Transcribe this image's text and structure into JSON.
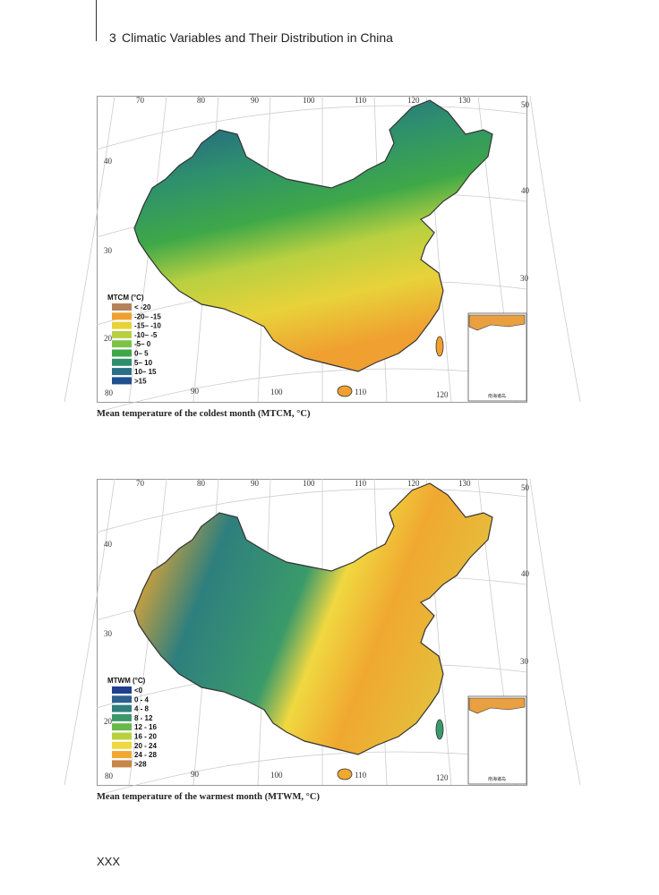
{
  "header": {
    "chapter": "3",
    "title": "Climatic Variables and Their Distribution in China"
  },
  "figures": [
    {
      "legend": {
        "title": "MTCM (°C)",
        "items": [
          {
            "label": "< -20",
            "color": "#b5835a"
          },
          {
            "label": "-20– -15",
            "color": "#f0a030"
          },
          {
            "label": "-15– -10",
            "color": "#e8d23a"
          },
          {
            "label": "-10– -5",
            "color": "#b8d040"
          },
          {
            "label": "-5– 0",
            "color": "#7cc34a"
          },
          {
            "label": "0– 5",
            "color": "#3ea848"
          },
          {
            "label": "5– 10",
            "color": "#2e8f6e"
          },
          {
            "label": "10– 15",
            "color": "#2a6f8a"
          },
          {
            "label": ">15",
            "color": "#1f4f8f"
          }
        ]
      },
      "graticule": {
        "top": [
          "70",
          "80",
          "90",
          "100",
          "110",
          "120",
          "130"
        ],
        "right": [
          "50",
          "40",
          "30"
        ],
        "left": [
          "40",
          "30",
          "20"
        ],
        "bottom": [
          "80",
          "90",
          "100",
          "110",
          "120"
        ]
      },
      "inset_label": "南海诸岛",
      "caption": "Mean temperature of the coldest month (MTCM, °C)"
    },
    {
      "legend": {
        "title": "MTWM (°C)",
        "items": [
          {
            "label": "<0",
            "color": "#1f3f8f"
          },
          {
            "label": "0 - 4",
            "color": "#2e5f8f"
          },
          {
            "label": "4 - 8",
            "color": "#2e7f7e"
          },
          {
            "label": "8 - 12",
            "color": "#3a9a6a"
          },
          {
            "label": "12 - 16",
            "color": "#6ab84a"
          },
          {
            "label": "16 - 20",
            "color": "#b8d040"
          },
          {
            "label": "20 - 24",
            "color": "#f0d840"
          },
          {
            "label": "24 - 28",
            "color": "#f0a830"
          },
          {
            "label": ">28",
            "color": "#c8864a"
          }
        ]
      },
      "graticule": {
        "top": [
          "70",
          "80",
          "90",
          "100",
          "110",
          "120",
          "130"
        ],
        "right": [
          "50",
          "40",
          "30"
        ],
        "left": [
          "40",
          "30",
          "20"
        ],
        "bottom": [
          "80",
          "90",
          "100",
          "110",
          "120"
        ]
      },
      "inset_label": "南海诸岛",
      "caption": "Mean temperature of the warmest month (MTWM, °C)"
    }
  ],
  "page_number": "XXX"
}
